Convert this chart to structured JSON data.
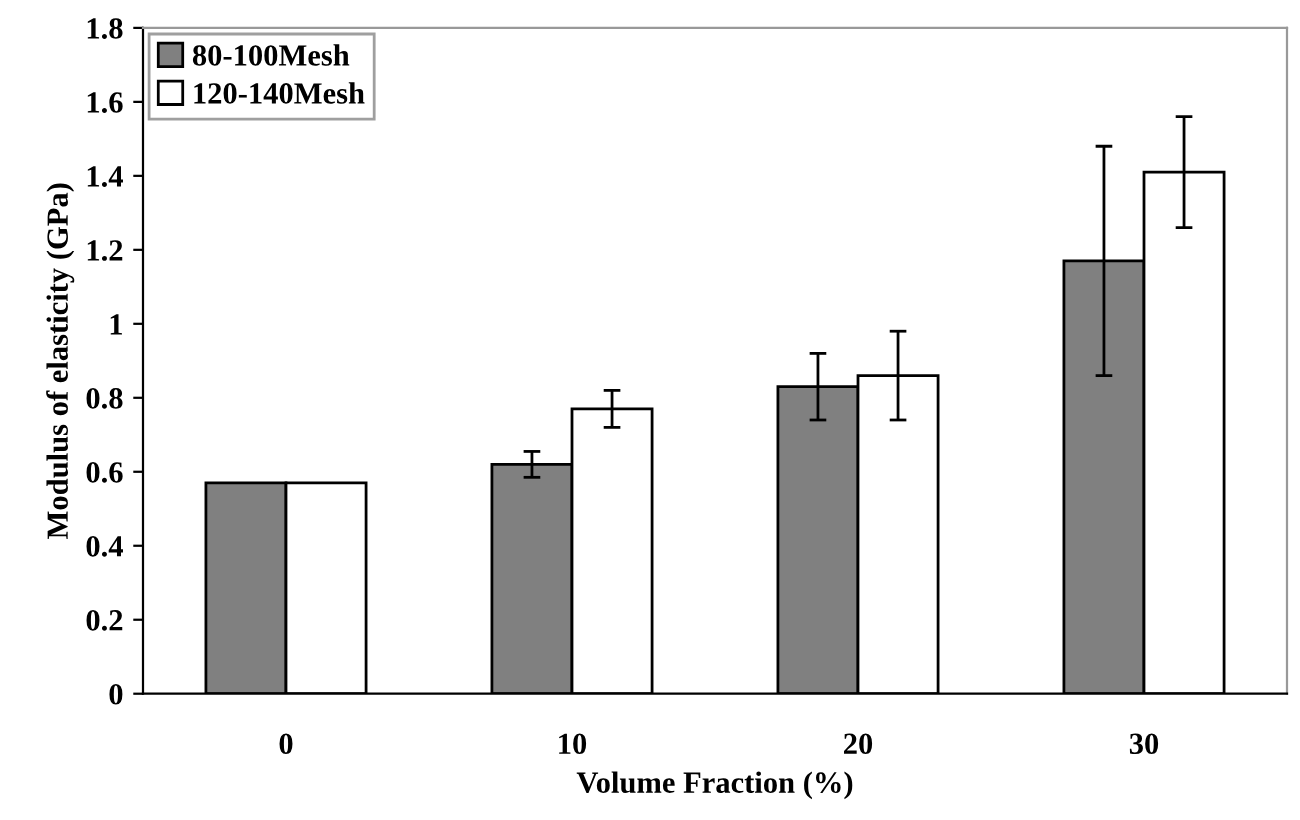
{
  "chart_data": {
    "type": "bar",
    "xlabel": "Volume Fraction (%)",
    "ylabel": "Modulus of elasticity (GPa)",
    "categories": [
      "0",
      "10",
      "20",
      "30"
    ],
    "series": [
      {
        "name": "80-100Mesh",
        "color": "#808080",
        "values": [
          0.57,
          0.62,
          0.83,
          1.17
        ],
        "errors": [
          null,
          0.035,
          0.09,
          0.31
        ]
      },
      {
        "name": "120-140Mesh",
        "color": "#ffffff",
        "values": [
          0.57,
          0.77,
          0.86,
          1.41
        ],
        "errors": [
          null,
          0.05,
          0.12,
          0.15
        ]
      }
    ],
    "ylim": [
      0,
      1.8
    ],
    "yticks": [
      0,
      0.2,
      0.4,
      0.6,
      0.8,
      1,
      1.2,
      1.4,
      1.6,
      1.8
    ],
    "legend": "top left"
  }
}
